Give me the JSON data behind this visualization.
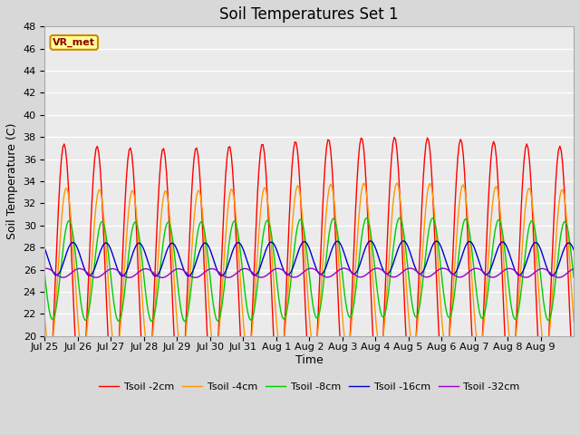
{
  "title": "Soil Temperatures Set 1",
  "xlabel": "Time",
  "ylabel": "Soil Temperature (C)",
  "ylim": [
    20,
    48
  ],
  "days": 16,
  "xtick_labels": [
    "Jul 25",
    "Jul 26",
    "Jul 27",
    "Jul 28",
    "Jul 29",
    "Jul 30",
    "Jul 31",
    "Aug 1",
    "Aug 2",
    "Aug 3",
    "Aug 4",
    "Aug 5",
    "Aug 6",
    "Aug 7",
    "Aug 8",
    "Aug 9"
  ],
  "colors": {
    "t2cm": "#ff0000",
    "t4cm": "#ff9900",
    "t8cm": "#00cc00",
    "t16cm": "#0000cc",
    "t32cm": "#9900cc"
  },
  "legend_labels": [
    "Tsoil -2cm",
    "Tsoil -4cm",
    "Tsoil -8cm",
    "Tsoil -16cm",
    "Tsoil -32cm"
  ],
  "annotation_text": "VR_met",
  "background_color": "#d8d8d8",
  "plot_bg_color": "#ebebeb",
  "grid_color": "#ffffff",
  "title_fontsize": 12,
  "label_fontsize": 9,
  "tick_fontsize": 8,
  "t2_amp": 11.5,
  "t2_mean": 26.0,
  "t2_phase": 0.33,
  "t4_amp": 7.5,
  "t4_mean": 26.0,
  "t4_phase": 0.4,
  "t8_amp": 4.5,
  "t8_mean": 27.5,
  "t8_phase": 0.48,
  "t16_amp": 1.5,
  "t16_mean": 27.5,
  "t16_phase": 0.6,
  "t32_amp": 0.4,
  "t32_mean": 25.7,
  "t32_phase": 0.8
}
